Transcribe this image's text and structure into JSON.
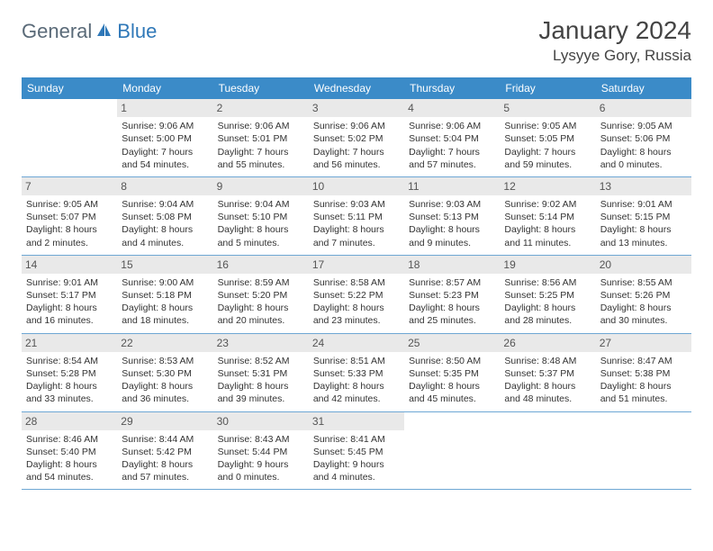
{
  "brand": {
    "part1": "General",
    "part2": "Blue",
    "icon_color": "#2f78b8"
  },
  "title": "January 2024",
  "location": "Lysyye Gory, Russia",
  "colors": {
    "header_bg": "#3b8bc8",
    "header_text": "#ffffff",
    "daynum_bg": "#e9e9e9",
    "row_divider": "#6ea7d4",
    "body_text": "#333333"
  },
  "day_headers": [
    "Sunday",
    "Monday",
    "Tuesday",
    "Wednesday",
    "Thursday",
    "Friday",
    "Saturday"
  ],
  "weeks": [
    [
      {
        "n": "",
        "lines": [
          "",
          "",
          "",
          ""
        ]
      },
      {
        "n": "1",
        "lines": [
          "Sunrise: 9:06 AM",
          "Sunset: 5:00 PM",
          "Daylight: 7 hours",
          "and 54 minutes."
        ]
      },
      {
        "n": "2",
        "lines": [
          "Sunrise: 9:06 AM",
          "Sunset: 5:01 PM",
          "Daylight: 7 hours",
          "and 55 minutes."
        ]
      },
      {
        "n": "3",
        "lines": [
          "Sunrise: 9:06 AM",
          "Sunset: 5:02 PM",
          "Daylight: 7 hours",
          "and 56 minutes."
        ]
      },
      {
        "n": "4",
        "lines": [
          "Sunrise: 9:06 AM",
          "Sunset: 5:04 PM",
          "Daylight: 7 hours",
          "and 57 minutes."
        ]
      },
      {
        "n": "5",
        "lines": [
          "Sunrise: 9:05 AM",
          "Sunset: 5:05 PM",
          "Daylight: 7 hours",
          "and 59 minutes."
        ]
      },
      {
        "n": "6",
        "lines": [
          "Sunrise: 9:05 AM",
          "Sunset: 5:06 PM",
          "Daylight: 8 hours",
          "and 0 minutes."
        ]
      }
    ],
    [
      {
        "n": "7",
        "lines": [
          "Sunrise: 9:05 AM",
          "Sunset: 5:07 PM",
          "Daylight: 8 hours",
          "and 2 minutes."
        ]
      },
      {
        "n": "8",
        "lines": [
          "Sunrise: 9:04 AM",
          "Sunset: 5:08 PM",
          "Daylight: 8 hours",
          "and 4 minutes."
        ]
      },
      {
        "n": "9",
        "lines": [
          "Sunrise: 9:04 AM",
          "Sunset: 5:10 PM",
          "Daylight: 8 hours",
          "and 5 minutes."
        ]
      },
      {
        "n": "10",
        "lines": [
          "Sunrise: 9:03 AM",
          "Sunset: 5:11 PM",
          "Daylight: 8 hours",
          "and 7 minutes."
        ]
      },
      {
        "n": "11",
        "lines": [
          "Sunrise: 9:03 AM",
          "Sunset: 5:13 PM",
          "Daylight: 8 hours",
          "and 9 minutes."
        ]
      },
      {
        "n": "12",
        "lines": [
          "Sunrise: 9:02 AM",
          "Sunset: 5:14 PM",
          "Daylight: 8 hours",
          "and 11 minutes."
        ]
      },
      {
        "n": "13",
        "lines": [
          "Sunrise: 9:01 AM",
          "Sunset: 5:15 PM",
          "Daylight: 8 hours",
          "and 13 minutes."
        ]
      }
    ],
    [
      {
        "n": "14",
        "lines": [
          "Sunrise: 9:01 AM",
          "Sunset: 5:17 PM",
          "Daylight: 8 hours",
          "and 16 minutes."
        ]
      },
      {
        "n": "15",
        "lines": [
          "Sunrise: 9:00 AM",
          "Sunset: 5:18 PM",
          "Daylight: 8 hours",
          "and 18 minutes."
        ]
      },
      {
        "n": "16",
        "lines": [
          "Sunrise: 8:59 AM",
          "Sunset: 5:20 PM",
          "Daylight: 8 hours",
          "and 20 minutes."
        ]
      },
      {
        "n": "17",
        "lines": [
          "Sunrise: 8:58 AM",
          "Sunset: 5:22 PM",
          "Daylight: 8 hours",
          "and 23 minutes."
        ]
      },
      {
        "n": "18",
        "lines": [
          "Sunrise: 8:57 AM",
          "Sunset: 5:23 PM",
          "Daylight: 8 hours",
          "and 25 minutes."
        ]
      },
      {
        "n": "19",
        "lines": [
          "Sunrise: 8:56 AM",
          "Sunset: 5:25 PM",
          "Daylight: 8 hours",
          "and 28 minutes."
        ]
      },
      {
        "n": "20",
        "lines": [
          "Sunrise: 8:55 AM",
          "Sunset: 5:26 PM",
          "Daylight: 8 hours",
          "and 30 minutes."
        ]
      }
    ],
    [
      {
        "n": "21",
        "lines": [
          "Sunrise: 8:54 AM",
          "Sunset: 5:28 PM",
          "Daylight: 8 hours",
          "and 33 minutes."
        ]
      },
      {
        "n": "22",
        "lines": [
          "Sunrise: 8:53 AM",
          "Sunset: 5:30 PM",
          "Daylight: 8 hours",
          "and 36 minutes."
        ]
      },
      {
        "n": "23",
        "lines": [
          "Sunrise: 8:52 AM",
          "Sunset: 5:31 PM",
          "Daylight: 8 hours",
          "and 39 minutes."
        ]
      },
      {
        "n": "24",
        "lines": [
          "Sunrise: 8:51 AM",
          "Sunset: 5:33 PM",
          "Daylight: 8 hours",
          "and 42 minutes."
        ]
      },
      {
        "n": "25",
        "lines": [
          "Sunrise: 8:50 AM",
          "Sunset: 5:35 PM",
          "Daylight: 8 hours",
          "and 45 minutes."
        ]
      },
      {
        "n": "26",
        "lines": [
          "Sunrise: 8:48 AM",
          "Sunset: 5:37 PM",
          "Daylight: 8 hours",
          "and 48 minutes."
        ]
      },
      {
        "n": "27",
        "lines": [
          "Sunrise: 8:47 AM",
          "Sunset: 5:38 PM",
          "Daylight: 8 hours",
          "and 51 minutes."
        ]
      }
    ],
    [
      {
        "n": "28",
        "lines": [
          "Sunrise: 8:46 AM",
          "Sunset: 5:40 PM",
          "Daylight: 8 hours",
          "and 54 minutes."
        ]
      },
      {
        "n": "29",
        "lines": [
          "Sunrise: 8:44 AM",
          "Sunset: 5:42 PM",
          "Daylight: 8 hours",
          "and 57 minutes."
        ]
      },
      {
        "n": "30",
        "lines": [
          "Sunrise: 8:43 AM",
          "Sunset: 5:44 PM",
          "Daylight: 9 hours",
          "and 0 minutes."
        ]
      },
      {
        "n": "31",
        "lines": [
          "Sunrise: 8:41 AM",
          "Sunset: 5:45 PM",
          "Daylight: 9 hours",
          "and 4 minutes."
        ]
      },
      {
        "n": "",
        "lines": [
          "",
          "",
          "",
          ""
        ]
      },
      {
        "n": "",
        "lines": [
          "",
          "",
          "",
          ""
        ]
      },
      {
        "n": "",
        "lines": [
          "",
          "",
          "",
          ""
        ]
      }
    ]
  ]
}
